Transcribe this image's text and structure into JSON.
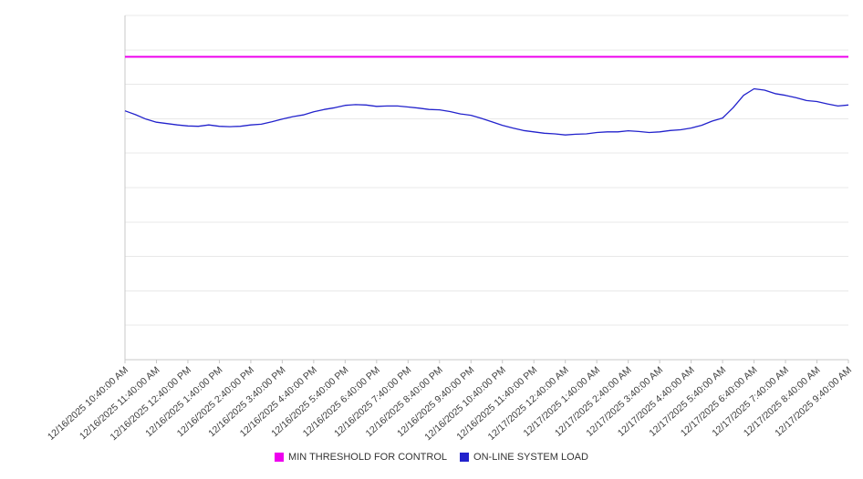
{
  "chart": {
    "background": "#ffffff"
  },
  "chart_data": {
    "type": "line",
    "title": "",
    "xlabel": "",
    "ylabel": "",
    "ylim": [
      0,
      100
    ],
    "grid_step": 10,
    "grid": "horizontal",
    "y_tick_labels_visible": false,
    "legend_position": "bottom-center",
    "sample_interval_minutes": 20,
    "x_tick_labels": [
      "12/16/2025 10:40:00 AM",
      "12/16/2025 11:40:00 AM",
      "12/16/2025 12:40:00 PM",
      "12/16/2025 1:40:00 PM",
      "12/16/2025 2:40:00 PM",
      "12/16/2025 3:40:00 PM",
      "12/16/2025 4:40:00 PM",
      "12/16/2025 5:40:00 PM",
      "12/16/2025 6:40:00 PM",
      "12/16/2025 7:40:00 PM",
      "12/16/2025 8:40:00 PM",
      "12/16/2025 9:40:00 PM",
      "12/16/2025 10:40:00 PM",
      "12/16/2025 11:40:00 PM",
      "12/17/2025 12:40:00 AM",
      "12/17/2025 1:40:00 AM",
      "12/17/2025 2:40:00 AM",
      "12/17/2025 3:40:00 AM",
      "12/17/2025 4:40:00 AM",
      "12/17/2025 5:40:00 AM",
      "12/17/2025 6:40:00 AM",
      "12/17/2025 7:40:00 AM",
      "12/17/2025 8:40:00 AM",
      "12/17/2025 9:40:00 AM"
    ],
    "series": [
      {
        "name": "MIN THRESHOLD FOR CONTROL",
        "color": "#ee00ee",
        "constant": 88
      },
      {
        "name": "ON-LINE SYSTEM LOAD",
        "color": "#2222cc",
        "values": [
          72.3,
          71.2,
          69.9,
          69.0,
          68.6,
          68.2,
          67.9,
          67.8,
          68.2,
          67.8,
          67.7,
          67.8,
          68.2,
          68.4,
          69.1,
          69.9,
          70.6,
          71.1,
          72.0,
          72.7,
          73.2,
          73.9,
          74.1,
          74.0,
          73.6,
          73.7,
          73.7,
          73.4,
          73.1,
          72.7,
          72.6,
          72.1,
          71.4,
          71.0,
          70.1,
          69.1,
          68.1,
          67.3,
          66.6,
          66.2,
          65.8,
          65.6,
          65.3,
          65.5,
          65.6,
          66.0,
          66.2,
          66.2,
          66.5,
          66.3,
          66.0,
          66.2,
          66.6,
          66.8,
          67.3,
          68.1,
          69.3,
          70.2,
          73.2,
          76.8,
          78.7,
          78.3,
          77.3,
          76.8,
          76.1,
          75.3,
          75.0,
          74.3,
          73.7,
          74.0
        ]
      }
    ]
  }
}
